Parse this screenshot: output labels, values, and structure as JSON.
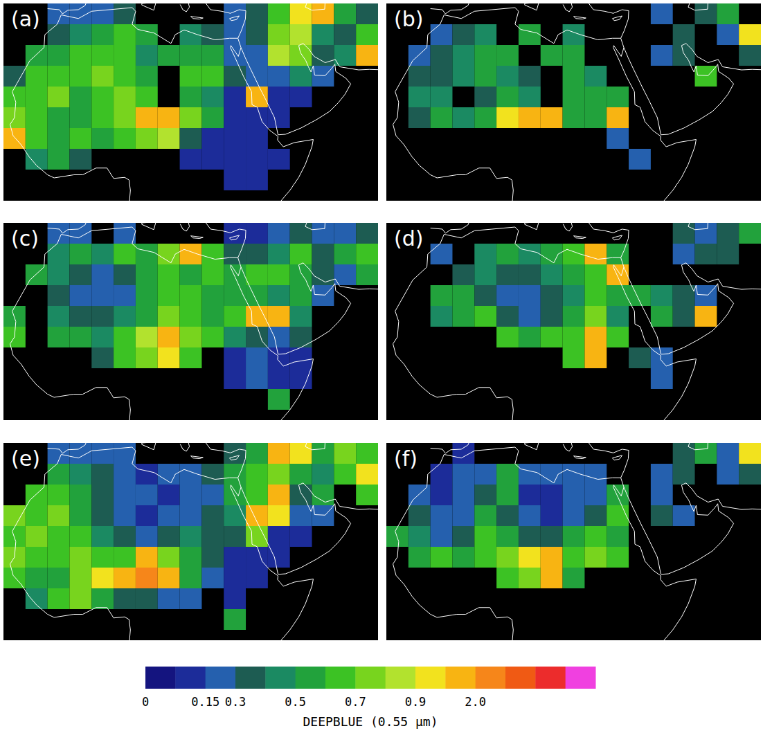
{
  "colorbar": {
    "label": "DEEPBLUE (0.55 µm)",
    "bounds": [
      0,
      0.075,
      0.15,
      0.3,
      0.4,
      0.5,
      0.6,
      0.7,
      0.8,
      0.9,
      1.0,
      2.0,
      3.0,
      4.0,
      5.0,
      6.0
    ],
    "colors": [
      "#14147f",
      "#1c2c99",
      "#2560ae",
      "#1d5c52",
      "#1b8a62",
      "#22a23c",
      "#3cc224",
      "#78d41e",
      "#b2e22e",
      "#f2e21e",
      "#f8b412",
      "#f6861a",
      "#f05a14",
      "#ec2c2c",
      "#f040e0"
    ],
    "ticks": [
      0,
      0.15,
      0.3,
      0.5,
      0.7,
      0.9,
      {
        "value": 2.0,
        "label": "2.0"
      }
    ]
  },
  "chart_data": [
    {
      "type": "heatmap",
      "title": "(a)",
      "tick_labels": false,
      "grid": false,
      "xlim": [
        -19,
        66
      ],
      "ylim": [
        0,
        38
      ],
      "x": [
        -16.5,
        -11.5,
        -6.5,
        -1.5,
        3.5,
        8.5,
        13.5,
        18.5,
        23.5,
        28.5,
        33.5,
        38.5,
        43.5,
        48.5,
        53.5,
        58.5,
        63.5
      ],
      "y": [
        36,
        32,
        28,
        24,
        20,
        16,
        12,
        8,
        4
      ],
      "cells": [
        [
          null,
          null,
          0.2,
          0.25,
          0.2,
          0.3,
          null,
          null,
          null,
          null,
          0.2,
          0.3,
          0.6,
          0.9,
          1.2,
          0.5,
          0.3
        ],
        [
          null,
          null,
          0.3,
          0.4,
          0.5,
          0.6,
          0.5,
          null,
          0.4,
          0.3,
          0.2,
          0.3,
          0.7,
          0.8,
          0.4,
          0.3,
          0.6
        ],
        [
          null,
          0.5,
          0.5,
          0.6,
          0.6,
          0.6,
          0.4,
          0.5,
          0.5,
          0.5,
          0.2,
          0.2,
          0.8,
          0.7,
          0.3,
          0.4,
          1.0
        ],
        [
          0.3,
          0.6,
          0.6,
          0.6,
          0.7,
          0.6,
          0.5,
          null,
          0.6,
          0.6,
          0.3,
          0.15,
          0.2,
          0.4,
          0.2,
          null,
          null
        ],
        [
          0.6,
          0.6,
          0.7,
          0.5,
          0.6,
          0.7,
          0.6,
          null,
          0.5,
          0.4,
          0.1,
          1.2,
          0.1,
          0.1,
          null,
          null,
          null
        ],
        [
          0.7,
          0.6,
          0.5,
          0.5,
          0.6,
          0.7,
          1.2,
          1.5,
          0.7,
          0.5,
          0.1,
          0.1,
          0.1,
          null,
          null,
          null,
          null
        ],
        [
          1.2,
          0.6,
          0.5,
          0.6,
          0.5,
          0.6,
          0.7,
          0.8,
          0.3,
          0.1,
          0.1,
          0.1,
          null,
          null,
          null,
          null,
          null
        ],
        [
          null,
          0.4,
          0.5,
          0.3,
          null,
          null,
          null,
          null,
          0.1,
          0.1,
          0.1,
          0.1,
          0.1,
          null,
          null,
          null,
          null
        ],
        [
          null,
          null,
          null,
          null,
          null,
          null,
          null,
          null,
          null,
          null,
          0.1,
          0.1,
          null,
          null,
          null,
          null,
          null
        ]
      ]
    },
    {
      "type": "heatmap",
      "title": "(b)",
      "tick_labels": false,
      "grid": false,
      "xlim": [
        -19,
        66
      ],
      "ylim": [
        0,
        38
      ],
      "x": [
        -16.5,
        -11.5,
        -6.5,
        -1.5,
        3.5,
        8.5,
        13.5,
        18.5,
        23.5,
        28.5,
        33.5,
        38.5,
        43.5,
        48.5,
        53.5,
        58.5,
        63.5
      ],
      "y": [
        36,
        32,
        28,
        24,
        20,
        16,
        12,
        8,
        4
      ],
      "cells": [
        [
          null,
          null,
          null,
          null,
          null,
          null,
          null,
          null,
          null,
          null,
          null,
          null,
          0.2,
          null,
          0.3,
          0.5,
          null
        ],
        [
          null,
          null,
          0.2,
          0.3,
          0.4,
          null,
          0.5,
          null,
          0.4,
          null,
          null,
          null,
          null,
          0.3,
          null,
          0.2,
          0.9
        ],
        [
          null,
          0.2,
          0.3,
          0.4,
          0.5,
          0.5,
          null,
          0.5,
          0.5,
          null,
          null,
          null,
          0.2,
          0.3,
          null,
          null,
          0.3
        ],
        [
          null,
          0.3,
          0.3,
          0.4,
          0.5,
          0.4,
          0.3,
          null,
          0.5,
          0.4,
          null,
          null,
          null,
          null,
          0.6,
          null,
          null
        ],
        [
          null,
          0.4,
          0.4,
          null,
          0.3,
          0.5,
          0.4,
          null,
          0.5,
          0.5,
          0.5,
          null,
          null,
          null,
          null,
          null,
          null
        ],
        [
          null,
          0.3,
          0.5,
          0.4,
          0.5,
          0.9,
          1.5,
          1.2,
          0.5,
          0.5,
          1.2,
          null,
          null,
          null,
          null,
          null,
          null
        ],
        [
          null,
          null,
          null,
          null,
          null,
          null,
          null,
          null,
          null,
          null,
          0.2,
          null,
          null,
          null,
          null,
          null,
          null
        ],
        [
          null,
          null,
          null,
          null,
          null,
          null,
          null,
          null,
          null,
          null,
          null,
          0.2,
          null,
          null,
          null,
          null,
          null
        ],
        [
          null,
          null,
          null,
          null,
          null,
          null,
          null,
          null,
          null,
          null,
          null,
          null,
          null,
          null,
          null,
          null,
          null
        ]
      ]
    },
    {
      "type": "heatmap",
      "title": "(c)",
      "tick_labels": false,
      "grid": false,
      "xlim": [
        -19,
        66
      ],
      "ylim": [
        0,
        38
      ],
      "x": [
        -16.5,
        -11.5,
        -6.5,
        -1.5,
        3.5,
        8.5,
        13.5,
        18.5,
        23.5,
        28.5,
        33.5,
        38.5,
        43.5,
        48.5,
        53.5,
        58.5,
        63.5
      ],
      "y": [
        36,
        32,
        28,
        24,
        20,
        16,
        12,
        8,
        4
      ],
      "cells": [
        [
          null,
          null,
          0.15,
          0.2,
          null,
          0.2,
          null,
          null,
          null,
          null,
          0.1,
          0.1,
          0.2,
          0.3,
          0.2,
          0.15,
          0.3
        ],
        [
          null,
          null,
          0.4,
          0.5,
          0.4,
          0.6,
          0.5,
          0.7,
          1.2,
          0.6,
          0.3,
          0.3,
          0.4,
          0.6,
          0.3,
          0.5,
          0.6
        ],
        [
          null,
          0.5,
          0.4,
          0.3,
          0.2,
          0.3,
          0.5,
          0.6,
          0.5,
          0.6,
          0.5,
          0.6,
          0.6,
          0.5,
          0.3,
          0.2,
          0.5
        ],
        [
          null,
          null,
          0.3,
          0.2,
          0.15,
          0.2,
          0.5,
          0.6,
          0.6,
          0.5,
          0.5,
          0.5,
          0.4,
          0.5,
          0.2,
          null,
          null
        ],
        [
          0.5,
          null,
          0.4,
          0.3,
          0.3,
          0.4,
          0.5,
          0.7,
          0.6,
          0.5,
          0.6,
          1.2,
          1.5,
          0.4,
          null,
          null,
          null
        ],
        [
          0.6,
          null,
          0.5,
          0.5,
          0.4,
          0.6,
          0.8,
          1.5,
          0.7,
          0.6,
          0.4,
          0.3,
          0.2,
          0.3,
          null,
          null,
          null
        ],
        [
          null,
          null,
          null,
          null,
          0.3,
          0.6,
          0.7,
          0.9,
          0.6,
          null,
          0.1,
          0.15,
          0.1,
          0.1,
          null,
          null,
          null
        ],
        [
          null,
          null,
          null,
          null,
          null,
          null,
          null,
          null,
          null,
          null,
          0.1,
          0.2,
          0.1,
          0.1,
          null,
          null,
          null
        ],
        [
          null,
          null,
          null,
          null,
          null,
          null,
          null,
          null,
          null,
          null,
          null,
          null,
          0.5,
          null,
          null,
          null,
          null
        ]
      ]
    },
    {
      "type": "heatmap",
      "title": "(d)",
      "tick_labels": false,
      "grid": false,
      "xlim": [
        -19,
        66
      ],
      "ylim": [
        0,
        38
      ],
      "x": [
        -16.5,
        -11.5,
        -6.5,
        -1.5,
        3.5,
        8.5,
        13.5,
        18.5,
        23.5,
        28.5,
        33.5,
        38.5,
        43.5,
        48.5,
        53.5,
        58.5,
        63.5
      ],
      "y": [
        36,
        32,
        28,
        24,
        20,
        16,
        12,
        8,
        4
      ],
      "cells": [
        [
          null,
          null,
          null,
          null,
          null,
          null,
          null,
          null,
          null,
          null,
          null,
          null,
          null,
          0.3,
          0.2,
          0.3,
          0.5
        ],
        [
          null,
          null,
          0.2,
          null,
          0.4,
          0.5,
          0.4,
          0.5,
          0.6,
          1.2,
          0.5,
          null,
          null,
          0.2,
          0.3,
          0.3,
          null
        ],
        [
          null,
          null,
          null,
          0.3,
          0.4,
          0.3,
          0.3,
          0.4,
          0.5,
          0.6,
          1.2,
          null,
          null,
          null,
          null,
          null,
          null
        ],
        [
          null,
          null,
          0.5,
          0.5,
          0.3,
          0.2,
          0.2,
          0.3,
          0.4,
          0.6,
          0.5,
          0.5,
          0.4,
          0.3,
          0.2,
          null,
          null
        ],
        [
          null,
          null,
          0.4,
          0.5,
          0.6,
          0.3,
          0.2,
          0.3,
          0.5,
          0.7,
          0.4,
          null,
          0.5,
          0.3,
          1.2,
          null,
          null
        ],
        [
          null,
          null,
          null,
          null,
          null,
          0.6,
          0.5,
          0.6,
          0.6,
          1.5,
          0.6,
          null,
          null,
          null,
          null,
          null,
          null
        ],
        [
          null,
          null,
          null,
          null,
          null,
          null,
          null,
          null,
          0.6,
          1.5,
          null,
          0.3,
          0.2,
          null,
          null,
          null,
          null
        ],
        [
          null,
          null,
          null,
          null,
          null,
          null,
          null,
          null,
          null,
          null,
          null,
          null,
          0.2,
          null,
          null,
          null,
          null
        ],
        [
          null,
          null,
          null,
          null,
          null,
          null,
          null,
          null,
          null,
          null,
          null,
          null,
          null,
          null,
          null,
          null,
          null
        ]
      ]
    },
    {
      "type": "heatmap",
      "title": "(e)",
      "tick_labels": false,
      "grid": false,
      "xlim": [
        -19,
        66
      ],
      "ylim": [
        0,
        38
      ],
      "x": [
        -16.5,
        -11.5,
        -6.5,
        -1.5,
        3.5,
        8.5,
        13.5,
        18.5,
        23.5,
        28.5,
        33.5,
        38.5,
        43.5,
        48.5,
        53.5,
        58.5,
        63.5
      ],
      "y": [
        36,
        32,
        28,
        24,
        20,
        16,
        12,
        8,
        4
      ],
      "cells": [
        [
          null,
          null,
          0.2,
          0.2,
          0.15,
          0.2,
          null,
          null,
          null,
          null,
          0.3,
          0.5,
          1.2,
          0.9,
          0.5,
          0.7,
          0.6
        ],
        [
          null,
          null,
          0.5,
          0.4,
          0.3,
          0.15,
          0.1,
          0.15,
          0.2,
          0.3,
          0.5,
          0.6,
          0.7,
          0.5,
          0.4,
          0.6,
          0.9
        ],
        [
          null,
          0.6,
          0.6,
          0.5,
          0.3,
          0.2,
          0.15,
          0.1,
          0.2,
          0.2,
          0.5,
          0.6,
          1.2,
          0.3,
          0.5,
          null,
          0.6
        ],
        [
          0.7,
          0.6,
          0.7,
          0.5,
          0.3,
          0.2,
          0.1,
          0.15,
          0.2,
          0.3,
          0.4,
          1.2,
          0.9,
          0.2,
          0.15,
          null,
          null
        ],
        [
          0.6,
          0.7,
          0.6,
          0.6,
          0.4,
          0.3,
          0.2,
          0.3,
          0.4,
          0.3,
          0.3,
          0.7,
          0.1,
          0.1,
          null,
          null,
          null
        ],
        [
          0.7,
          0.6,
          0.6,
          0.7,
          0.6,
          0.6,
          1.5,
          0.7,
          0.5,
          0.3,
          0.1,
          0.1,
          0.1,
          null,
          null,
          null,
          null
        ],
        [
          0.6,
          0.5,
          0.5,
          0.7,
          0.9,
          1.2,
          2.0,
          1.5,
          0.5,
          0.2,
          0.1,
          0.1,
          null,
          null,
          null,
          null,
          null
        ],
        [
          null,
          0.4,
          0.6,
          0.7,
          0.5,
          0.3,
          0.3,
          0.2,
          0.2,
          null,
          0.1,
          null,
          null,
          null,
          null,
          null,
          null
        ],
        [
          null,
          null,
          null,
          null,
          null,
          null,
          null,
          null,
          null,
          null,
          0.5,
          null,
          null,
          null,
          null,
          null,
          null
        ]
      ]
    },
    {
      "type": "heatmap",
      "title": "(f)",
      "tick_labels": false,
      "grid": false,
      "xlim": [
        -19,
        66
      ],
      "ylim": [
        0,
        38
      ],
      "x": [
        -16.5,
        -11.5,
        -6.5,
        -1.5,
        3.5,
        8.5,
        13.5,
        18.5,
        23.5,
        28.5,
        33.5,
        38.5,
        43.5,
        48.5,
        53.5,
        58.5,
        63.5
      ],
      "y": [
        36,
        32,
        28,
        24,
        20,
        16,
        12,
        8,
        4
      ],
      "cells": [
        [
          null,
          null,
          null,
          0.1,
          null,
          null,
          null,
          null,
          null,
          null,
          null,
          null,
          null,
          0.3,
          0.5,
          0.2,
          0.9
        ],
        [
          null,
          null,
          0.1,
          0.2,
          0.2,
          0.5,
          0.15,
          0.2,
          0.15,
          0.2,
          null,
          null,
          0.2,
          0.3,
          null,
          0.2,
          0.3
        ],
        [
          null,
          0.2,
          0.1,
          0.15,
          0.3,
          0.5,
          0.1,
          0.1,
          0.15,
          0.2,
          0.5,
          null,
          0.2,
          null,
          null,
          null,
          null
        ],
        [
          null,
          0.3,
          0.15,
          0.2,
          0.5,
          0.3,
          0.15,
          0.1,
          0.2,
          0.3,
          0.6,
          null,
          0.3,
          0.2,
          null,
          null,
          null
        ],
        [
          0.5,
          0.4,
          0.2,
          0.3,
          0.6,
          0.5,
          0.3,
          0.3,
          0.5,
          0.6,
          0.5,
          null,
          null,
          null,
          null,
          null,
          null
        ],
        [
          null,
          0.5,
          0.6,
          0.5,
          0.6,
          0.7,
          0.9,
          1.5,
          0.6,
          0.7,
          0.6,
          null,
          null,
          null,
          null,
          null,
          null
        ],
        [
          null,
          null,
          null,
          null,
          null,
          0.6,
          0.7,
          1.2,
          0.5,
          null,
          null,
          null,
          null,
          null,
          null,
          null,
          null
        ],
        [
          null,
          null,
          null,
          null,
          null,
          null,
          null,
          null,
          null,
          null,
          null,
          null,
          null,
          null,
          null,
          null,
          null
        ],
        [
          null,
          null,
          null,
          null,
          null,
          null,
          null,
          null,
          null,
          null,
          null,
          null,
          null,
          null,
          null,
          null,
          null
        ]
      ]
    }
  ]
}
